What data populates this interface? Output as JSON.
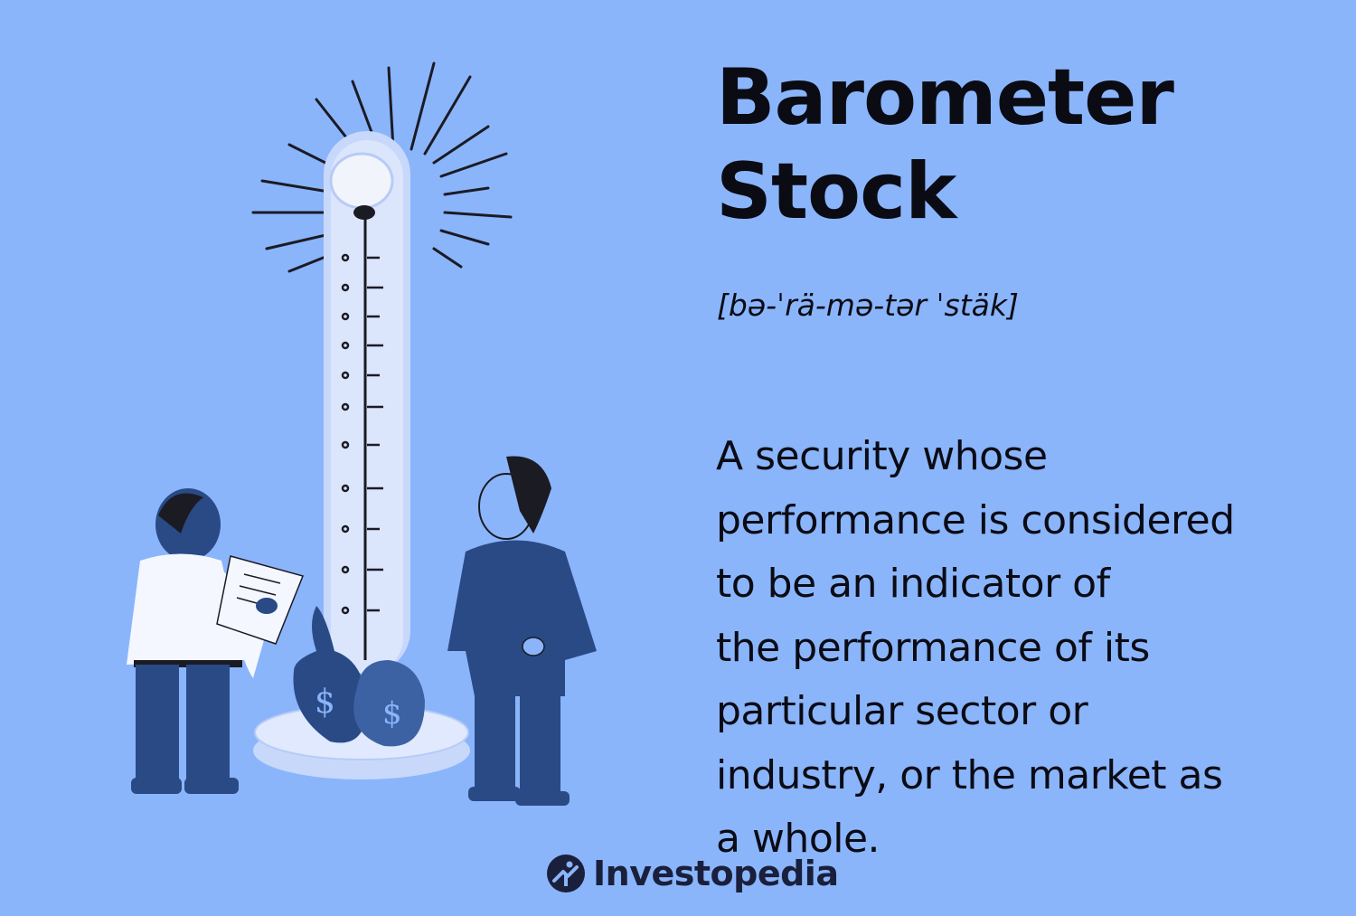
{
  "title": "Barometer\nStock",
  "pronunciation": "[bə-ˈrä-mə-tər ˈstäk]",
  "definition": "A security whose\nperformance is considered\nto be an indicator of\nthe performance of its\nparticular sector or\nindustry, or the market as\na whole.",
  "brand": {
    "name": "Investopedia",
    "logo_icon": "investopedia-logo-icon"
  },
  "illustration": {
    "description_icon": "strength-tester-illustration-icon"
  },
  "colors": {
    "background": "#8ab5fb",
    "text": "#0b0b14",
    "navy": "#2a4a86",
    "logo": "#1a1f3c"
  }
}
